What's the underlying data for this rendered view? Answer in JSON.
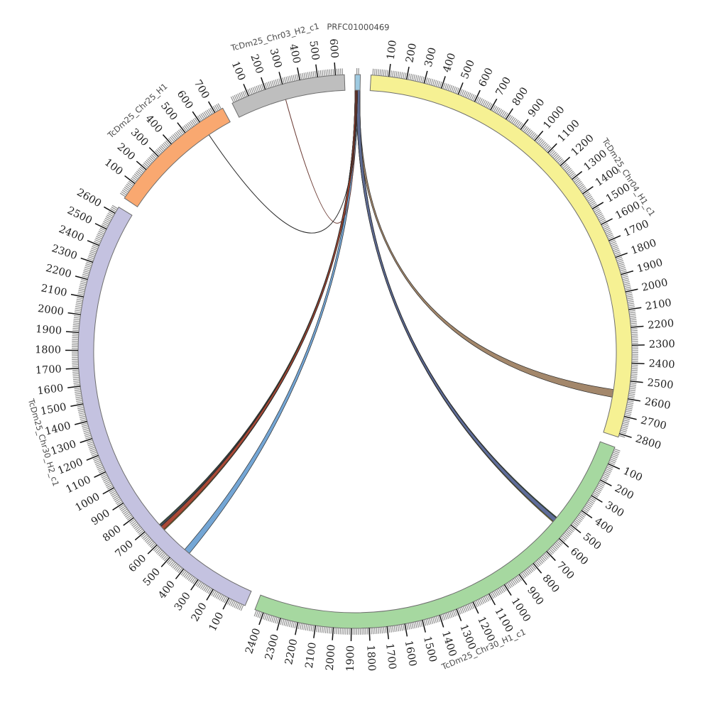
{
  "figure": {
    "kind": "circos-synteny-plot",
    "background": "#ffffff"
  },
  "chart_data": {
    "type": "chord",
    "layout": "circular (circos)",
    "grid": false,
    "legend": false,
    "gap_degrees": 2.2,
    "tick_interval_minor": 10,
    "tick_interval_major": 100,
    "segments": [
      {
        "name": "PRFC01000469",
        "length": 30,
        "color": "#9ECAE1",
        "label_at": 15,
        "tick_labels": []
      },
      {
        "name": "TcDm25_Chr04_H1_c1",
        "length": 2820,
        "color": "#F6F193",
        "label_at": 1460,
        "tick_labels": [
          100,
          200,
          300,
          400,
          500,
          600,
          700,
          800,
          900,
          1000,
          1100,
          1200,
          1300,
          1400,
          1500,
          1600,
          1700,
          1800,
          1900,
          2000,
          2100,
          2200,
          2300,
          2400,
          2500,
          2600,
          2700,
          2800
        ]
      },
      {
        "name": "TcDm25_Chr30_H1_c1",
        "length": 2450,
        "color": "#A6D8A0",
        "label_at": 1250,
        "tick_labels": [
          100,
          200,
          300,
          400,
          500,
          600,
          700,
          800,
          900,
          1000,
          1100,
          1200,
          1300,
          1400,
          1500,
          1600,
          1700,
          1800,
          1900,
          2000,
          2100,
          2200,
          2300,
          2400
        ]
      },
      {
        "name": "TcDm25_Chr30_H2_c1",
        "length": 2640,
        "color": "#C4C2E0",
        "label_at": 1355,
        "tick_labels": [
          100,
          200,
          300,
          400,
          500,
          600,
          700,
          800,
          900,
          1000,
          1100,
          1200,
          1300,
          1400,
          1500,
          1600,
          1700,
          1800,
          1900,
          2000,
          2100,
          2200,
          2300,
          2400,
          2500,
          2600
        ]
      },
      {
        "name": "TcDm25_Chr25_H1",
        "length": 750,
        "color": "#F9A870",
        "label_at": 385,
        "tick_labels": [
          100,
          200,
          300,
          400,
          500,
          600,
          700
        ]
      },
      {
        "name": "TcDm25_Chr03_H2_c1",
        "length": 650,
        "color": "#BEBEBE",
        "label_at": 325,
        "tick_labels": [
          100,
          200,
          300,
          400,
          500,
          600
        ]
      }
    ],
    "links": [
      {
        "id": "prfc-to-chr30h2-steelblue",
        "kind": "ribbon",
        "color": "#6FA3D4",
        "source": "PRFC01000469",
        "s": [
          2,
          20
        ],
        "target": "TcDm25_Chr30_H2_c1",
        "t": [
          430,
          466
        ]
      },
      {
        "id": "prfc-to-chr04-brown",
        "kind": "ribbon",
        "color": "#A08366",
        "source": "PRFC01000469",
        "s": [
          13,
          28
        ],
        "target": "TcDm25_Chr04_H1_c1",
        "t": [
          2560,
          2606
        ]
      },
      {
        "id": "prfc-to-chr30h1-green-edge",
        "kind": "ribbon",
        "color": "#3E7C40",
        "source": "PRFC01000469",
        "s": [
          8,
          30
        ],
        "target": "TcDm25_Chr30_H1_c1",
        "t": [
          517,
          522
        ]
      },
      {
        "id": "prfc-to-chr30h1-yellow-edge",
        "kind": "ribbon",
        "color": "#CFC12F",
        "source": "PRFC01000469",
        "s": [
          8,
          30
        ],
        "target": "TcDm25_Chr30_H1_c1",
        "t": [
          548,
          553
        ]
      },
      {
        "id": "prfc-to-chr30h1-slate",
        "kind": "ribbon",
        "color": "#5A6896",
        "source": "PRFC01000469",
        "s": [
          8,
          30
        ],
        "target": "TcDm25_Chr30_H1_c1",
        "t": [
          522,
          548
        ]
      },
      {
        "id": "prfc-to-chr30h2-yellow-edge",
        "kind": "ribbon",
        "color": "#CFC12F",
        "source": "PRFC01000469",
        "s": [
          0,
          15
        ],
        "target": "TcDm25_Chr30_H2_c1",
        "t": [
          632,
          637
        ]
      },
      {
        "id": "prfc-to-chr30h2-tan-edge",
        "kind": "ribbon",
        "color": "#C2A183",
        "source": "PRFC01000469",
        "s": [
          0,
          15
        ],
        "target": "TcDm25_Chr30_H2_c1",
        "t": [
          661,
          665
        ]
      },
      {
        "id": "prfc-to-chr30h2-slate-edge",
        "kind": "ribbon",
        "color": "#5A6896",
        "source": "PRFC01000469",
        "s": [
          0,
          15
        ],
        "target": "TcDm25_Chr30_H2_c1",
        "t": [
          665,
          671
        ]
      },
      {
        "id": "prfc-to-chr30h2-green-edge",
        "kind": "ribbon",
        "color": "#3E7C40",
        "source": "PRFC01000469",
        "s": [
          0,
          15
        ],
        "target": "TcDm25_Chr30_H2_c1",
        "t": [
          671,
          676
        ]
      },
      {
        "id": "prfc-to-chr30h2-red",
        "kind": "ribbon",
        "color": "#A8432F",
        "source": "PRFC01000469",
        "s": [
          0,
          15
        ],
        "target": "TcDm25_Chr30_H2_c1",
        "t": [
          637,
          661
        ]
      },
      {
        "id": "prfc-to-chr03h2-line",
        "kind": "line",
        "color": "#6B3A33",
        "source": "PRFC01000469",
        "s": [
          5,
          5
        ],
        "target": "TcDm25_Chr03_H2_c1",
        "t": [
          295,
          295
        ]
      },
      {
        "id": "prfc-to-chr25h1-line",
        "kind": "line",
        "color": "#222222",
        "source": "PRFC01000469",
        "s": [
          8,
          8
        ],
        "target": "TcDm25_Chr25_H1",
        "t": [
          603,
          603
        ]
      }
    ],
    "style": {
      "band_outline": "#6E6E6E",
      "minor_tick_color": "#8F8F8F",
      "major_tick_color": "#111111",
      "tick_label_color": "#1F1F1F",
      "segment_name_color": "#4A4A4A",
      "ribbon_outline": "#2B2B2B"
    }
  }
}
